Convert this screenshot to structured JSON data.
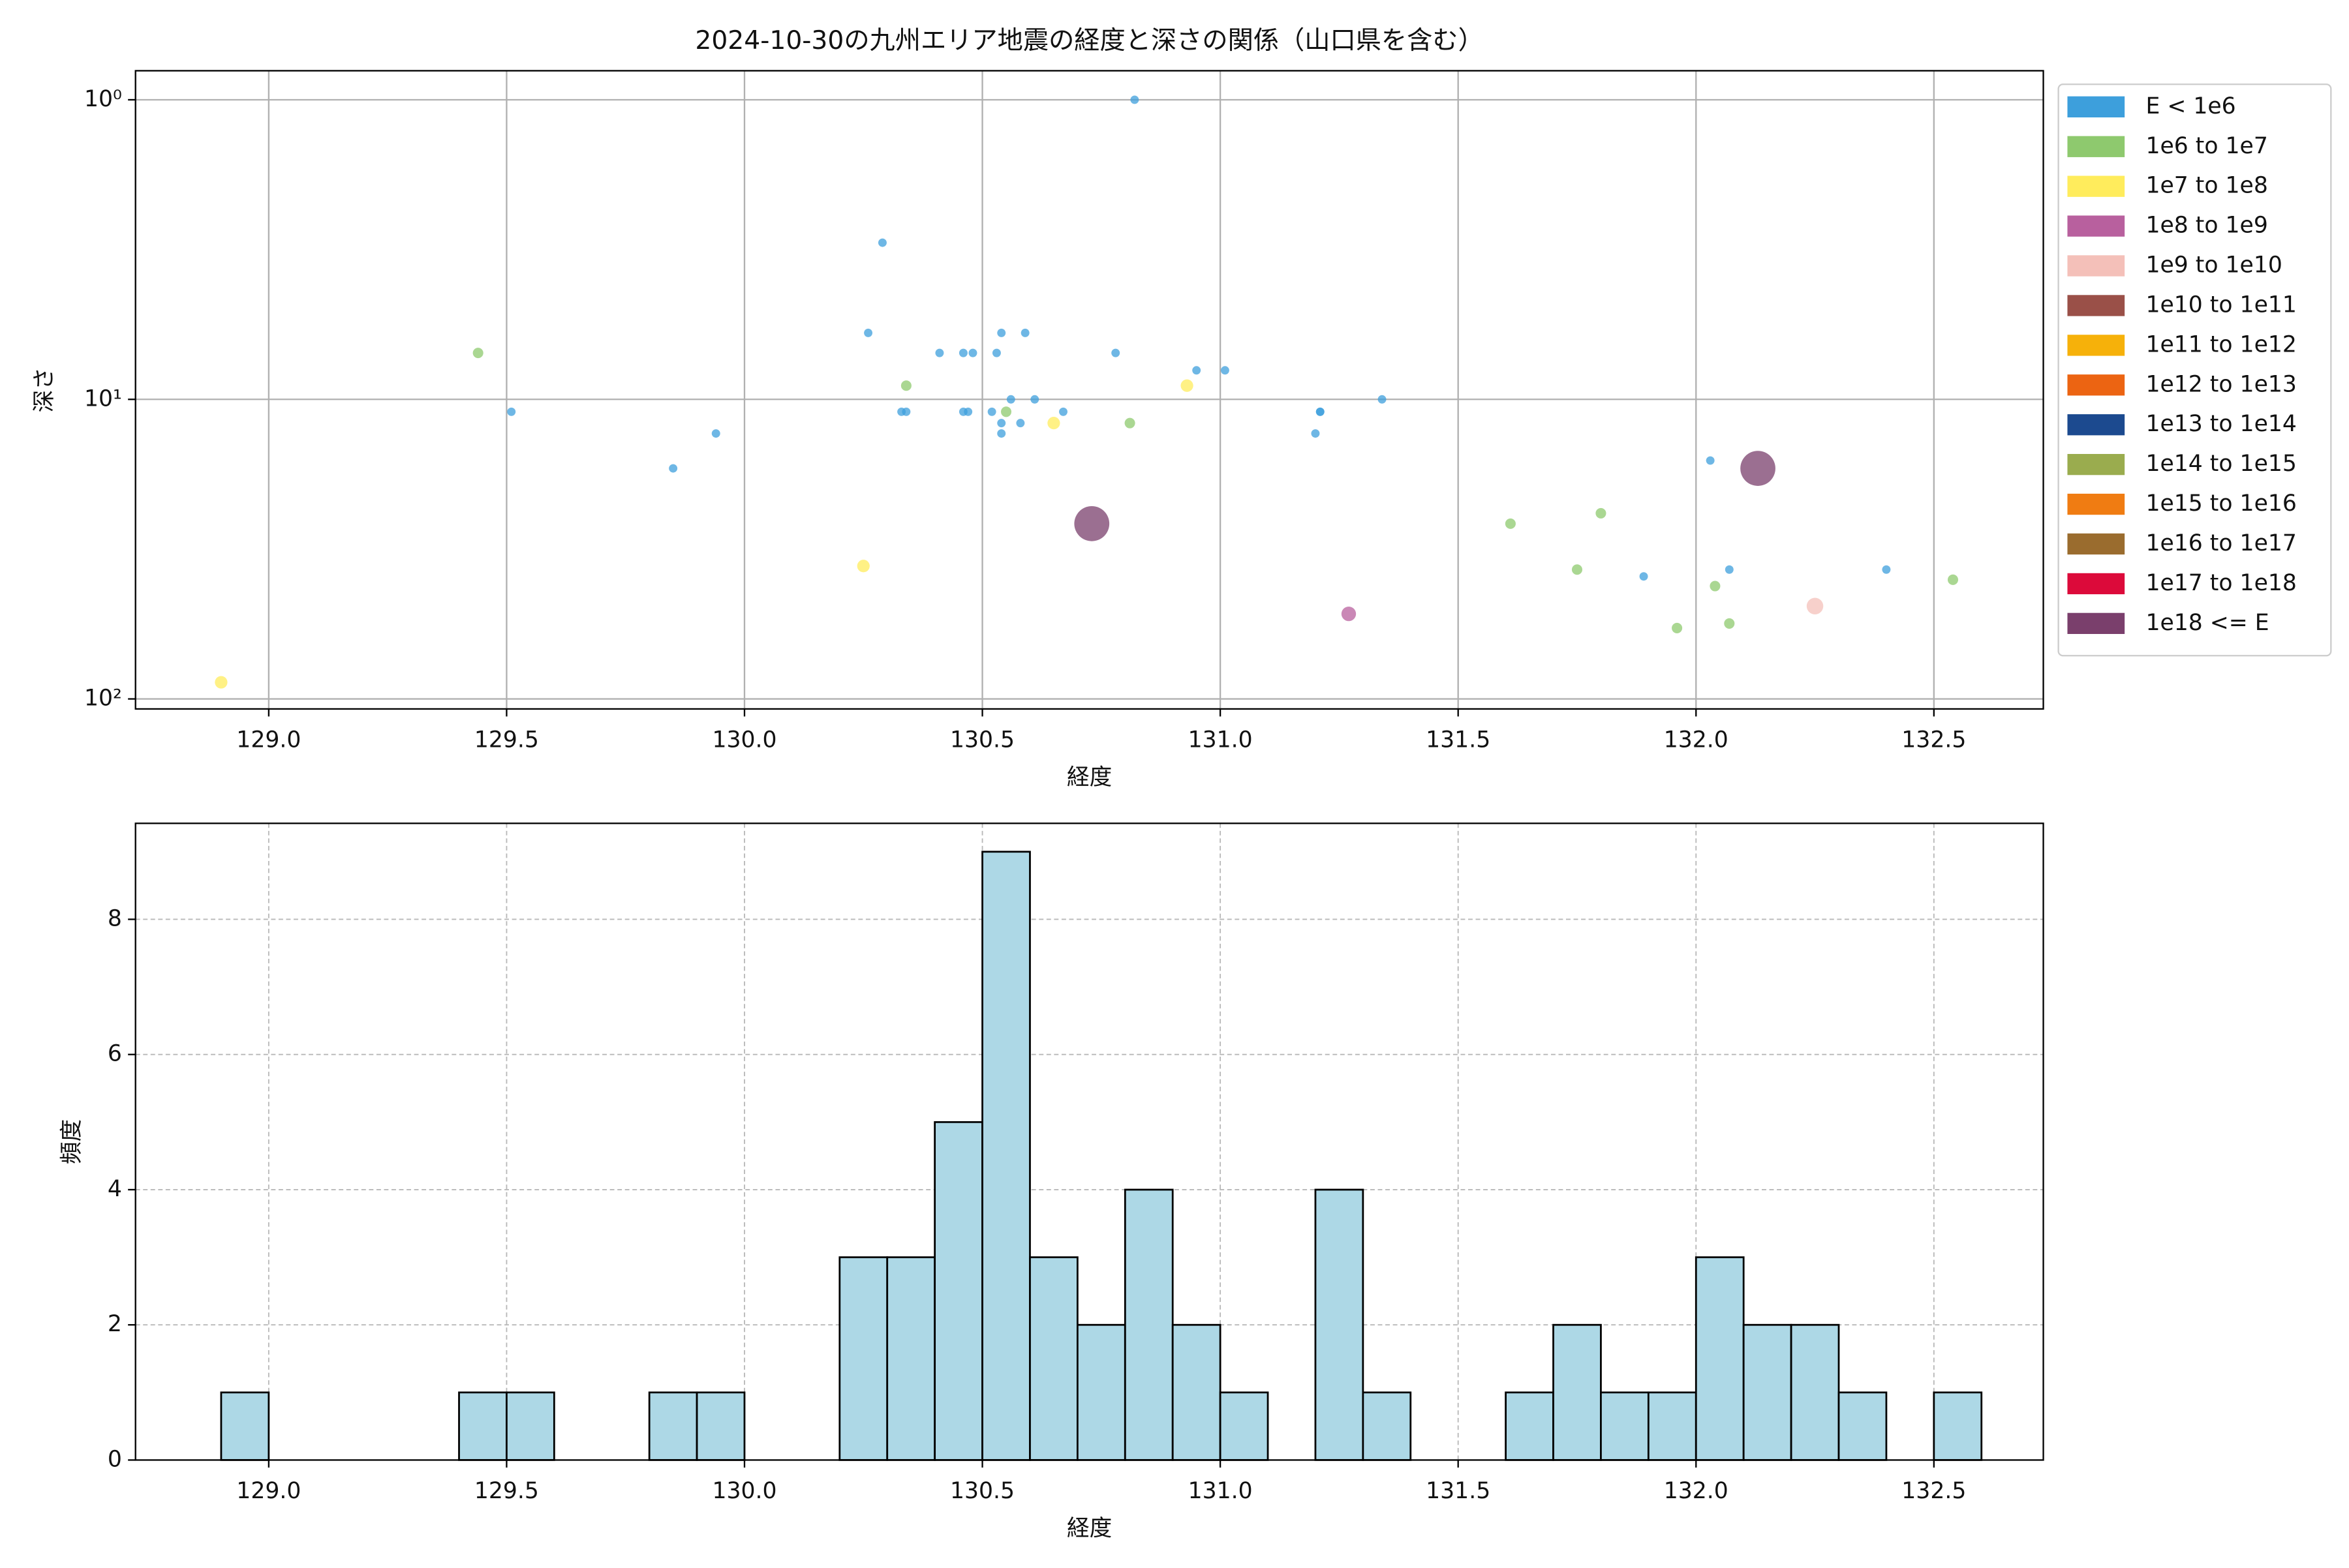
{
  "chart_data": [
    {
      "type": "scatter",
      "title": "2024-10-30の九州エリア地震の経度と深さの関係（山口県を含む）",
      "x_label": "経度",
      "y_label": "深さ",
      "xlim": [
        128.72,
        132.73
      ],
      "xticks": [
        {
          "value": 129,
          "label": "129.0"
        },
        129.5,
        {
          "value": 130,
          "label": "130.0"
        },
        130.5,
        {
          "value": 131,
          "label": "131.0"
        },
        131.5,
        {
          "value": 132,
          "label": "132.0"
        },
        132.5
      ],
      "ylim": [
        0.8,
        108
      ],
      "y_log": true,
      "y_inverted": true,
      "yticks": [
        {
          "value": 1,
          "label": "10⁰"
        },
        {
          "value": 10,
          "label": "10¹"
        },
        {
          "value": 100,
          "label": "10²"
        }
      ],
      "grid": true,
      "legend": "outside right",
      "series": [
        {
          "name": "E < 1e6",
          "color": "#3d9fdc",
          "x": [
            130.82,
            130.29,
            130.26,
            129.51,
            129.85,
            129.94,
            130.33,
            130.34,
            130.41,
            130.46,
            130.48,
            130.46,
            130.47,
            130.53,
            130.54,
            130.52,
            130.54,
            130.54,
            130.56,
            130.58,
            130.59,
            130.61,
            130.67,
            130.78,
            130.95,
            131.01,
            131.21,
            131.21,
            131.2,
            131.34,
            132.03,
            131.89,
            132.07,
            132.4
          ],
          "values": [
            1,
            3,
            6,
            11,
            17,
            13,
            11,
            11,
            7,
            7,
            7,
            11,
            11,
            7,
            6,
            11,
            12,
            13,
            10,
            12,
            6,
            10,
            11,
            7,
            8,
            8,
            11,
            11,
            13,
            10,
            16,
            39,
            37,
            37
          ]
        },
        {
          "name": "1e6 to 1e7",
          "color": "#8ec96e",
          "x": [
            129.44,
            130.34,
            130.55,
            130.81,
            131.61,
            131.8,
            131.75,
            131.96,
            132.04,
            132.07,
            132.54
          ],
          "values": [
            7,
            9,
            11,
            12,
            26,
            24,
            37,
            58,
            42,
            56,
            40
          ]
        },
        {
          "name": "1e7 to 1e8",
          "color": "#ffec5c",
          "x": [
            128.9,
            130.25,
            130.65,
            130.93
          ],
          "values": [
            88,
            36,
            12,
            9
          ]
        },
        {
          "name": "1e8 to 1e9",
          "color": "#b8609e",
          "x": [
            131.27
          ],
          "values": [
            52
          ]
        },
        {
          "name": "1e9 to 1e10",
          "color": "#f4c0b9",
          "x": [
            132.25
          ],
          "values": [
            49
          ]
        },
        {
          "name": "1e10 to 1e11",
          "color": "#9a5048",
          "x": [],
          "values": []
        },
        {
          "name": "1e11 to 1e12",
          "color": "#f6b10a",
          "x": [],
          "values": []
        },
        {
          "name": "1e12 to 1e13",
          "color": "#ec6412",
          "x": [],
          "values": []
        },
        {
          "name": "1e13 to 1e14",
          "color": "#1c4a8f",
          "x": [],
          "values": []
        },
        {
          "name": "1e14 to 1e15",
          "color": "#9aac4e",
          "x": [],
          "values": []
        },
        {
          "name": "1e15 to 1e16",
          "color": "#f07c12",
          "x": [],
          "values": []
        },
        {
          "name": "1e16 to 1e17",
          "color": "#9a6c2e",
          "x": [],
          "values": []
        },
        {
          "name": "1e17 to 1e18",
          "color": "#dc0a3a",
          "x": [],
          "values": []
        },
        {
          "name": "1e18 <= E",
          "color": "#7a3f6c",
          "x": [
            130.73,
            132.13
          ],
          "values": [
            26,
            17
          ]
        }
      ]
    },
    {
      "type": "histogram",
      "x_label": "経度",
      "y_label": "頻度",
      "color": "#add8e6",
      "xlim": [
        128.72,
        132.73
      ],
      "xticks": [
        {
          "value": 129,
          "label": "129.0"
        },
        129.5,
        {
          "value": 130,
          "label": "130.0"
        },
        130.5,
        {
          "value": 131,
          "label": "131.0"
        },
        131.5,
        {
          "value": 132,
          "label": "132.0"
        },
        132.5
      ],
      "ylim": [
        0,
        9.42
      ],
      "yticks": [
        0,
        2,
        4,
        6,
        8
      ],
      "grid": true,
      "grid_style": "dashed",
      "bins": [
        128.9,
        129.0,
        129.1,
        129.2,
        129.3,
        129.4,
        129.5,
        129.6,
        129.7,
        129.8,
        129.9,
        130.0,
        130.1,
        130.2,
        130.3,
        130.4,
        130.5,
        130.6,
        130.7,
        130.8,
        130.9,
        131.0,
        131.1,
        131.2,
        131.3,
        131.4,
        131.5,
        131.6,
        131.7,
        131.8,
        131.9,
        132.0,
        132.1,
        132.2,
        132.3,
        132.4,
        132.5,
        132.6
      ],
      "values": [
        1,
        0,
        0,
        0,
        0,
        1,
        1,
        0,
        0,
        1,
        1,
        0,
        0,
        3,
        3,
        5,
        9,
        3,
        2,
        4,
        2,
        1,
        0,
        4,
        1,
        0,
        0,
        1,
        2,
        1,
        1,
        3,
        2,
        2,
        1,
        0,
        1
      ]
    }
  ]
}
